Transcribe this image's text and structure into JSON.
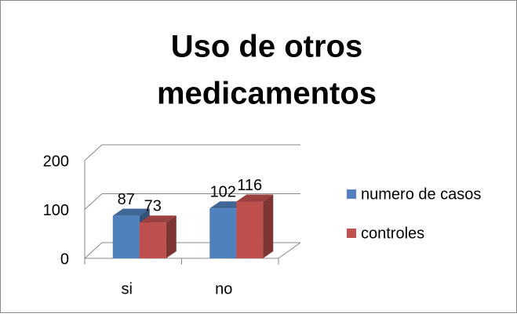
{
  "chart_data": {
    "type": "bar3d",
    "title": [
      "Uso de otros",
      "medicamentos"
    ],
    "categories": [
      "si",
      "no"
    ],
    "series": [
      {
        "name": "numero de casos",
        "color": "#4f81bd",
        "values": [
          87,
          102
        ]
      },
      {
        "name": "controles",
        "color": "#c0504d",
        "values": [
          73,
          116
        ]
      }
    ],
    "ylim": [
      0,
      200
    ],
    "yticks": [
      0,
      100,
      200
    ],
    "grid": true,
    "legend": "right"
  }
}
